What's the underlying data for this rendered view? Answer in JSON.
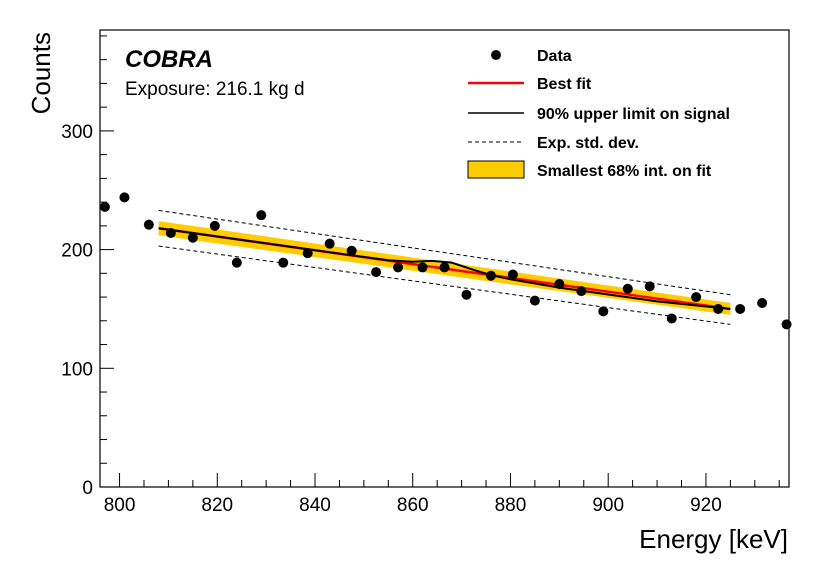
{
  "chart_data": {
    "type": "scatter",
    "title": "",
    "xlabel": "Energy [keV]",
    "ylabel": "Counts",
    "xlim": [
      796,
      937
    ],
    "ylim": [
      0,
      385
    ],
    "x_ticks": [
      800,
      820,
      840,
      860,
      880,
      900,
      920
    ],
    "y_ticks": [
      0,
      100,
      200,
      300
    ],
    "grid": false,
    "legend_placement": "top-right",
    "experiment_label": "COBRA",
    "exposure_label": "Exposure: 216.1 kg d",
    "legend": [
      {
        "key": "data",
        "label": "Data"
      },
      {
        "key": "best_fit",
        "label": "Best fit"
      },
      {
        "key": "upper_limit",
        "label": "90% upper limit on signal"
      },
      {
        "key": "std_dev",
        "label": "Exp. std. dev."
      },
      {
        "key": "band",
        "label": "Smallest 68% int. on fit"
      }
    ],
    "colors": {
      "data": "#000000",
      "best_fit": "#ff0000",
      "upper_limit": "#000000",
      "std_dev": "#000000",
      "band": "#ffcc00"
    },
    "series": [
      {
        "name": "Data",
        "kind": "points",
        "x": [
          797,
          801,
          806,
          810.5,
          815,
          819.5,
          824,
          829,
          833.5,
          838.5,
          843,
          847.5,
          852.5,
          857,
          862,
          866.5,
          871,
          876,
          880.5,
          885,
          890,
          894.5,
          899,
          904,
          908.5,
          913,
          918,
          922.5,
          927,
          931.5,
          936.5
        ],
        "y": [
          236,
          244,
          221,
          214,
          210,
          220,
          189,
          229,
          189,
          197,
          205,
          199,
          181,
          185,
          185,
          185,
          162,
          178,
          179,
          157,
          171,
          165,
          148,
          167,
          169,
          142,
          160,
          150,
          150,
          155,
          137
        ]
      },
      {
        "name": "Best fit",
        "kind": "line",
        "x": [
          808,
          925
        ],
        "y": [
          218,
          150
        ]
      },
      {
        "name": "90% upper limit on signal",
        "kind": "line",
        "x": [
          808,
          820,
          840,
          855,
          860,
          864,
          868,
          872,
          876,
          880,
          890,
          900,
          910,
          925
        ],
        "y": [
          218,
          211,
          199.5,
          191,
          189.8,
          190.5,
          189,
          183.5,
          178.5,
          175,
          168,
          162.2,
          156.4,
          150
        ]
      },
      {
        "name": "Exp. std. dev. upper",
        "kind": "line",
        "x": [
          808,
          925
        ],
        "y": [
          233,
          162
        ]
      },
      {
        "name": "Exp. std. dev. lower",
        "kind": "line",
        "x": [
          808,
          925
        ],
        "y": [
          203,
          137
        ]
      },
      {
        "name": "Smallest 68% int. on fit",
        "kind": "band",
        "x": [
          808,
          925
        ],
        "upper": [
          224,
          155
        ],
        "lower": [
          212,
          145
        ]
      }
    ]
  }
}
